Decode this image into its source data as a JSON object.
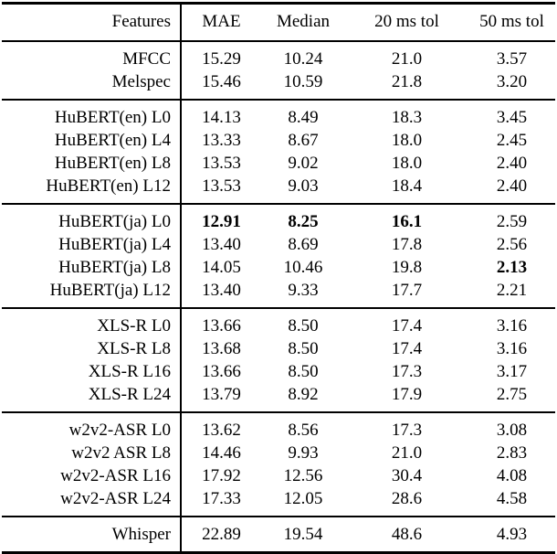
{
  "chart_data": {
    "type": "table",
    "title": "",
    "columns": [
      "Features",
      "MAE",
      "Median",
      "20 ms tol",
      "50 ms tol"
    ],
    "text_color": "#000000",
    "rule_color": "#000000",
    "sections": [
      {
        "rows": [
          {
            "feature": "MFCC",
            "values": [
              "15.29",
              "10.24",
              "21.0",
              "3.57"
            ]
          },
          {
            "feature": "Melspec",
            "values": [
              "15.46",
              "10.59",
              "21.8",
              "3.20"
            ]
          }
        ]
      },
      {
        "rows": [
          {
            "feature": "HuBERT(en) L0",
            "values": [
              "14.13",
              "8.49",
              "18.3",
              "3.45"
            ]
          },
          {
            "feature": "HuBERT(en) L4",
            "values": [
              "13.33",
              "8.67",
              "18.0",
              "2.45"
            ]
          },
          {
            "feature": "HuBERT(en) L8",
            "values": [
              "13.53",
              "9.02",
              "18.0",
              "2.40"
            ]
          },
          {
            "feature": "HuBERT(en) L12",
            "values": [
              "13.53",
              "9.03",
              "18.4",
              "2.40"
            ]
          }
        ]
      },
      {
        "rows": [
          {
            "feature": "HuBERT(ja) L0",
            "values": [
              "12.91",
              "8.25",
              "16.1",
              "2.59"
            ],
            "bold": [
              true,
              true,
              true,
              false
            ]
          },
          {
            "feature": "HuBERT(ja) L4",
            "values": [
              "13.40",
              "8.69",
              "17.8",
              "2.56"
            ]
          },
          {
            "feature": "HuBERT(ja) L8",
            "values": [
              "14.05",
              "10.46",
              "19.8",
              "2.13"
            ],
            "bold": [
              false,
              false,
              false,
              true
            ]
          },
          {
            "feature": "HuBERT(ja) L12",
            "values": [
              "13.40",
              "9.33",
              "17.7",
              "2.21"
            ]
          }
        ]
      },
      {
        "rows": [
          {
            "feature": "XLS-R L0",
            "values": [
              "13.66",
              "8.50",
              "17.4",
              "3.16"
            ]
          },
          {
            "feature": "XLS-R L8",
            "values": [
              "13.68",
              "8.50",
              "17.4",
              "3.16"
            ]
          },
          {
            "feature": "XLS-R L16",
            "values": [
              "13.66",
              "8.50",
              "17.3",
              "3.17"
            ]
          },
          {
            "feature": "XLS-R L24",
            "values": [
              "13.79",
              "8.92",
              "17.9",
              "2.75"
            ]
          }
        ]
      },
      {
        "rows": [
          {
            "feature": "w2v2-ASR L0",
            "values": [
              "13.62",
              "8.56",
              "17.3",
              "3.08"
            ]
          },
          {
            "feature": "w2v2 ASR L8",
            "values": [
              "14.46",
              "9.93",
              "21.0",
              "2.83"
            ]
          },
          {
            "feature": "w2v2-ASR L16",
            "values": [
              "17.92",
              "12.56",
              "30.4",
              "4.08"
            ]
          },
          {
            "feature": "w2v2-ASR L24",
            "values": [
              "17.33",
              "12.05",
              "28.6",
              "4.58"
            ]
          }
        ]
      },
      {
        "rows": [
          {
            "feature": "Whisper",
            "values": [
              "22.89",
              "19.54",
              "48.6",
              "4.93"
            ]
          }
        ]
      }
    ]
  }
}
